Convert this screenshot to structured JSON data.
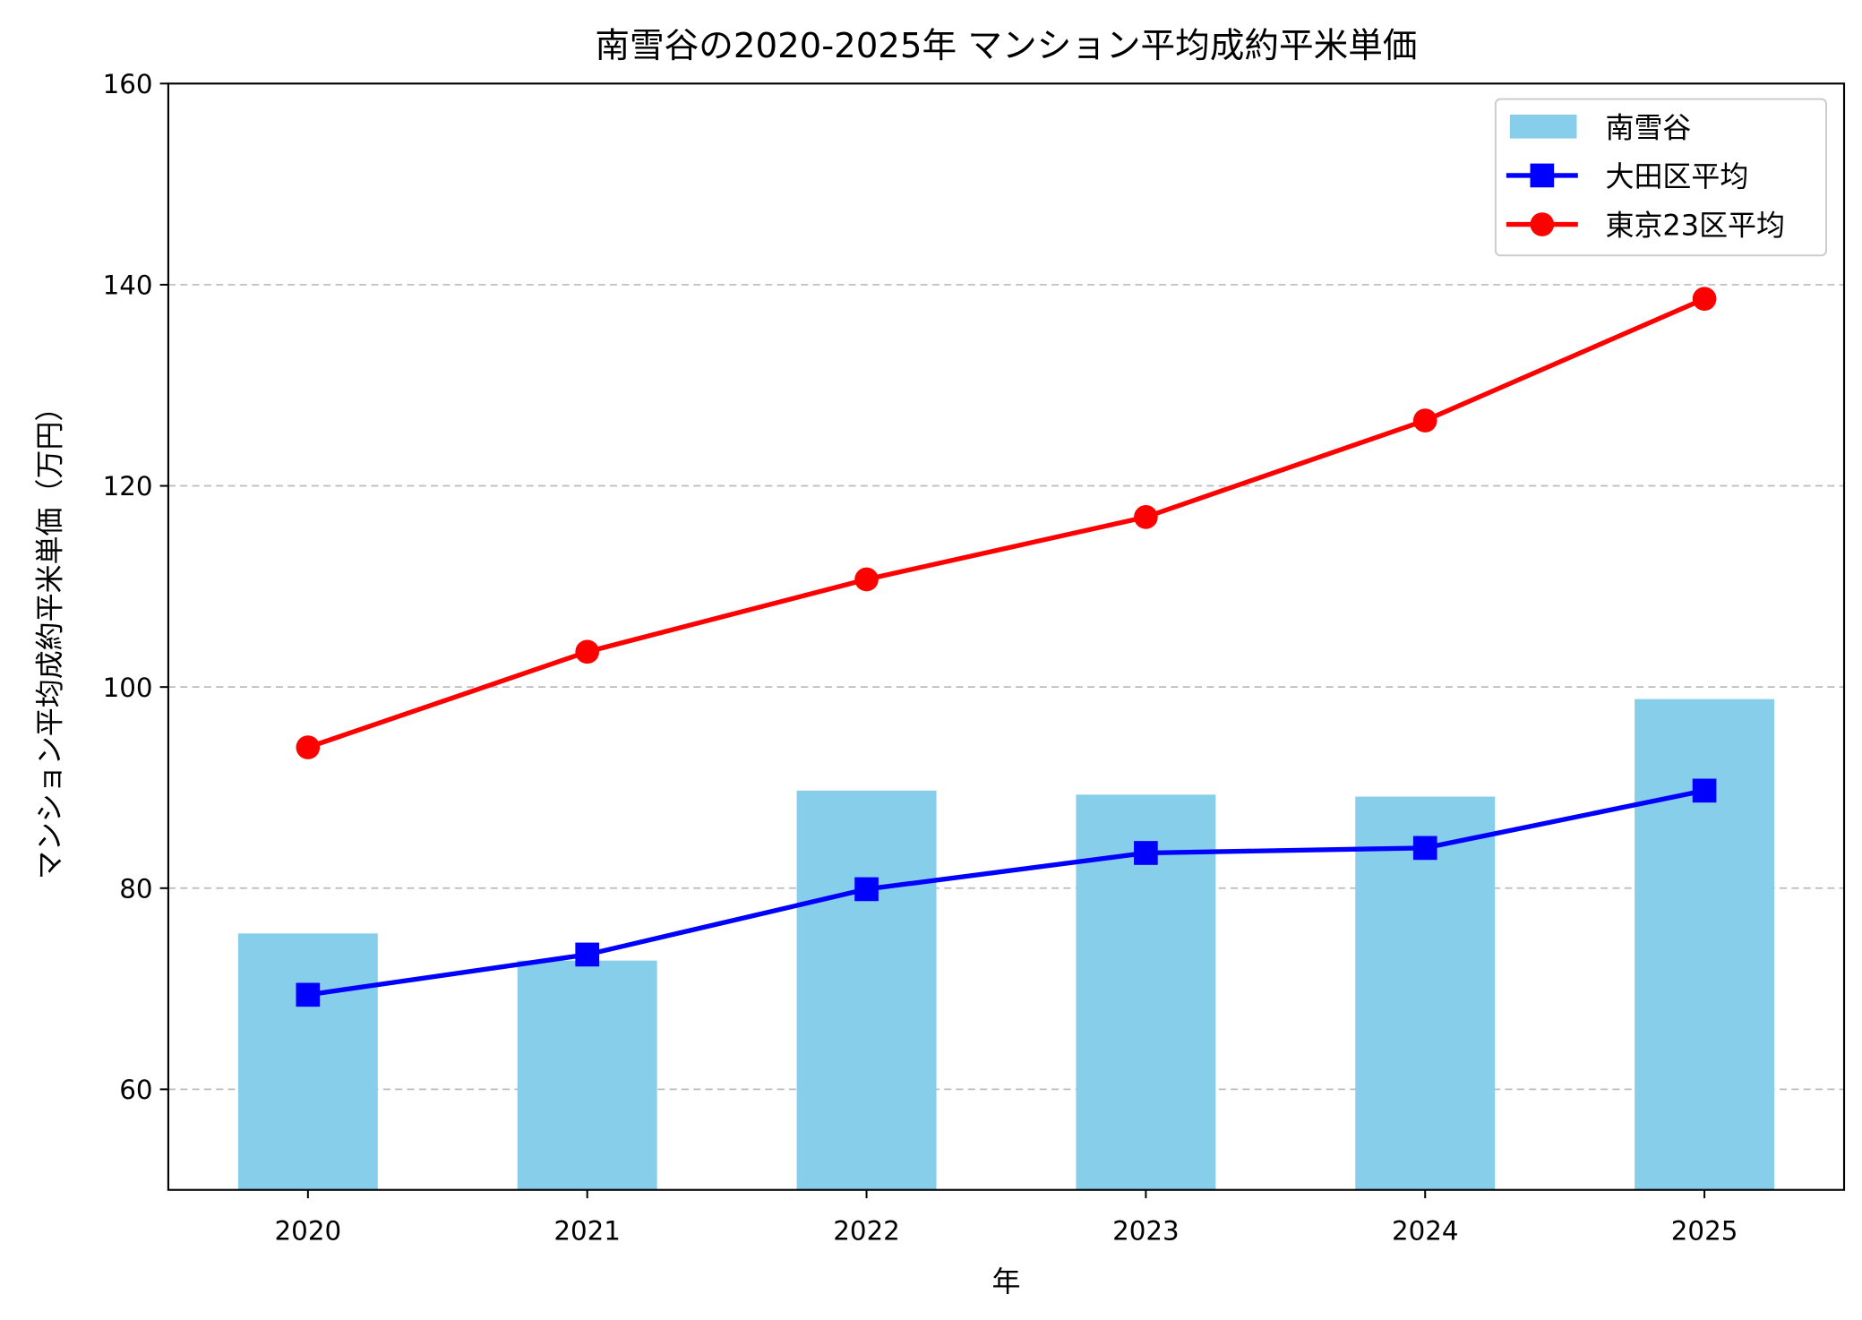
{
  "chart_data": {
    "type": "bar+line",
    "title": "南雪谷の2020-2025年 マンション平均成約平米単価",
    "xlabel": "年",
    "ylabel": "マンション平均成約平米単価（万円）",
    "categories": [
      "2020",
      "2021",
      "2022",
      "2023",
      "2024",
      "2025"
    ],
    "ylim": [
      50,
      160
    ],
    "yticks": [
      60,
      80,
      100,
      120,
      140,
      160
    ],
    "grid": "y-dashed",
    "legend_position": "top-right",
    "series": [
      {
        "name": "南雪谷",
        "kind": "bar",
        "color": "#87CEEB",
        "values": [
          75.5,
          72.8,
          89.7,
          89.3,
          89.1,
          98.8
        ]
      },
      {
        "name": "大田区平均",
        "kind": "line",
        "marker": "square",
        "color": "#0000FF",
        "values": [
          69.4,
          73.4,
          79.9,
          83.5,
          84.0,
          89.7
        ]
      },
      {
        "name": "東京23区平均",
        "kind": "line",
        "marker": "circle",
        "color": "#FF0000",
        "values": [
          94.0,
          103.5,
          110.7,
          116.9,
          126.5,
          138.6
        ]
      }
    ]
  }
}
